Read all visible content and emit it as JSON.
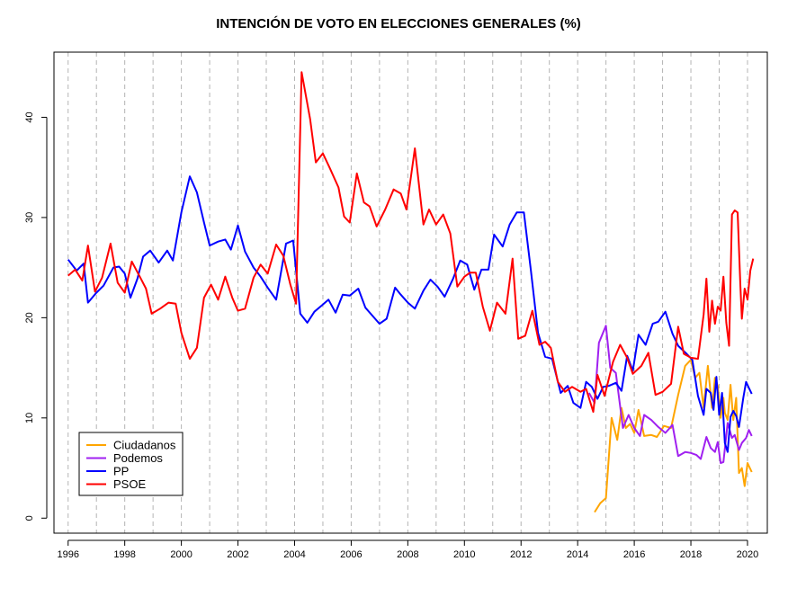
{
  "chart_data": {
    "type": "line",
    "title": "INTENCIÓN DE VOTO EN ELECCIONES GENERALES (%)",
    "xlabel": "",
    "ylabel": "",
    "xlim": [
      1995.5,
      2020.7
    ],
    "ylim": [
      -1.5,
      46.5
    ],
    "x_ticks": [
      1996,
      1998,
      2000,
      2002,
      2004,
      2006,
      2008,
      2010,
      2012,
      2014,
      2016,
      2018,
      2020
    ],
    "y_ticks": [
      0,
      10,
      20,
      30,
      40
    ],
    "vertical_gridlines": [
      1996,
      1997,
      1998,
      1999,
      2000,
      2001,
      2002,
      2003,
      2004,
      2005,
      2006,
      2007,
      2008,
      2009,
      2010,
      2011,
      2012,
      2013,
      2014,
      2015,
      2016,
      2017,
      2018,
      2019,
      2020
    ],
    "grid": "vertical dashed",
    "legend_position": "bottom-left",
    "series": [
      {
        "name": "Ciudadanos",
        "color": "#FFA500",
        "points": [
          [
            2014.6,
            0.6
          ],
          [
            2014.8,
            1.5
          ],
          [
            2015.0,
            2.0
          ],
          [
            2015.2,
            10.0
          ],
          [
            2015.4,
            7.8
          ],
          [
            2015.55,
            11.0
          ],
          [
            2015.7,
            9.0
          ],
          [
            2015.85,
            9.4
          ],
          [
            2016.0,
            8.5
          ],
          [
            2016.15,
            10.8
          ],
          [
            2016.35,
            8.2
          ],
          [
            2016.6,
            8.3
          ],
          [
            2016.8,
            8.1
          ],
          [
            2017.05,
            9.2
          ],
          [
            2017.3,
            9.0
          ],
          [
            2017.55,
            12.3
          ],
          [
            2017.8,
            15.2
          ],
          [
            2018.0,
            15.8
          ],
          [
            2018.15,
            14.0
          ],
          [
            2018.3,
            14.5
          ],
          [
            2018.45,
            11.0
          ],
          [
            2018.6,
            15.2
          ],
          [
            2018.75,
            11.0
          ],
          [
            2018.85,
            14.0
          ],
          [
            2018.95,
            13.2
          ],
          [
            2019.05,
            10.0
          ],
          [
            2019.15,
            12.0
          ],
          [
            2019.2,
            10.5
          ],
          [
            2019.3,
            9.8
          ],
          [
            2019.4,
            13.3
          ],
          [
            2019.5,
            9.8
          ],
          [
            2019.6,
            12.0
          ],
          [
            2019.7,
            4.5
          ],
          [
            2019.8,
            5.0
          ],
          [
            2019.9,
            3.2
          ],
          [
            2020.0,
            5.5
          ],
          [
            2020.15,
            4.6
          ]
        ]
      },
      {
        "name": "Podemos",
        "color": "#A020F0",
        "points": [
          [
            2014.4,
            12.5
          ],
          [
            2014.6,
            11.5
          ],
          [
            2014.75,
            17.5
          ],
          [
            2015.0,
            19.2
          ],
          [
            2015.15,
            15.0
          ],
          [
            2015.35,
            14.5
          ],
          [
            2015.6,
            9.0
          ],
          [
            2015.8,
            10.3
          ],
          [
            2016.0,
            9.0
          ],
          [
            2016.2,
            8.2
          ],
          [
            2016.35,
            10.3
          ],
          [
            2016.6,
            9.8
          ],
          [
            2016.85,
            9.1
          ],
          [
            2017.1,
            8.5
          ],
          [
            2017.35,
            9.3
          ],
          [
            2017.55,
            6.2
          ],
          [
            2017.8,
            6.6
          ],
          [
            2018.0,
            6.5
          ],
          [
            2018.2,
            6.3
          ],
          [
            2018.35,
            5.9
          ],
          [
            2018.55,
            8.1
          ],
          [
            2018.7,
            7.0
          ],
          [
            2018.85,
            6.6
          ],
          [
            2018.95,
            7.6
          ],
          [
            2019.05,
            5.5
          ],
          [
            2019.15,
            5.6
          ],
          [
            2019.3,
            9.5
          ],
          [
            2019.45,
            8.0
          ],
          [
            2019.55,
            8.3
          ],
          [
            2019.7,
            6.8
          ],
          [
            2019.8,
            7.5
          ],
          [
            2019.95,
            8.0
          ],
          [
            2020.05,
            8.8
          ],
          [
            2020.15,
            8.2
          ]
        ]
      },
      {
        "name": "PP",
        "color": "#0000FF",
        "points": [
          [
            1996.0,
            25.8
          ],
          [
            1996.3,
            24.7
          ],
          [
            1996.55,
            25.4
          ],
          [
            1996.7,
            21.5
          ],
          [
            1997.0,
            22.5
          ],
          [
            1997.25,
            23.2
          ],
          [
            1997.6,
            25.0
          ],
          [
            1997.8,
            25.1
          ],
          [
            1998.0,
            24.4
          ],
          [
            1998.2,
            22.0
          ],
          [
            1998.45,
            23.9
          ],
          [
            1998.65,
            26.1
          ],
          [
            1998.9,
            26.7
          ],
          [
            1999.2,
            25.5
          ],
          [
            1999.5,
            26.7
          ],
          [
            1999.7,
            25.7
          ],
          [
            2000.0,
            30.5
          ],
          [
            2000.3,
            34.1
          ],
          [
            2000.55,
            32.5
          ],
          [
            2000.8,
            29.5
          ],
          [
            2001.0,
            27.2
          ],
          [
            2001.3,
            27.6
          ],
          [
            2001.55,
            27.8
          ],
          [
            2001.75,
            26.8
          ],
          [
            2002.0,
            29.2
          ],
          [
            2002.25,
            26.6
          ],
          [
            2002.55,
            25.0
          ],
          [
            2002.8,
            24.1
          ],
          [
            2003.05,
            23.0
          ],
          [
            2003.35,
            21.8
          ],
          [
            2003.7,
            27.4
          ],
          [
            2003.95,
            27.7
          ],
          [
            2004.2,
            20.4
          ],
          [
            2004.45,
            19.5
          ],
          [
            2004.7,
            20.6
          ],
          [
            2004.95,
            21.2
          ],
          [
            2005.2,
            21.8
          ],
          [
            2005.45,
            20.5
          ],
          [
            2005.7,
            22.3
          ],
          [
            2005.95,
            22.2
          ],
          [
            2006.25,
            22.9
          ],
          [
            2006.5,
            21.0
          ],
          [
            2006.75,
            20.2
          ],
          [
            2007.0,
            19.4
          ],
          [
            2007.25,
            19.9
          ],
          [
            2007.55,
            23.0
          ],
          [
            2007.75,
            22.3
          ],
          [
            2008.0,
            21.5
          ],
          [
            2008.25,
            20.9
          ],
          [
            2008.55,
            22.7
          ],
          [
            2008.8,
            23.8
          ],
          [
            2009.05,
            23.1
          ],
          [
            2009.3,
            22.1
          ],
          [
            2009.6,
            23.9
          ],
          [
            2009.85,
            25.7
          ],
          [
            2010.1,
            25.3
          ],
          [
            2010.35,
            22.8
          ],
          [
            2010.6,
            24.8
          ],
          [
            2010.85,
            24.8
          ],
          [
            2011.05,
            28.3
          ],
          [
            2011.35,
            27.1
          ],
          [
            2011.6,
            29.3
          ],
          [
            2011.85,
            30.5
          ],
          [
            2012.1,
            30.5
          ],
          [
            2012.35,
            24.7
          ],
          [
            2012.6,
            18.5
          ],
          [
            2012.85,
            16.1
          ],
          [
            2013.1,
            15.9
          ],
          [
            2013.4,
            12.5
          ],
          [
            2013.65,
            13.2
          ],
          [
            2013.85,
            11.5
          ],
          [
            2014.1,
            11.0
          ],
          [
            2014.3,
            13.6
          ],
          [
            2014.5,
            13.1
          ],
          [
            2014.7,
            11.9
          ],
          [
            2014.9,
            13.1
          ],
          [
            2015.1,
            13.2
          ],
          [
            2015.35,
            13.5
          ],
          [
            2015.55,
            12.7
          ],
          [
            2015.75,
            16.2
          ],
          [
            2015.95,
            14.7
          ],
          [
            2016.15,
            18.3
          ],
          [
            2016.4,
            17.3
          ],
          [
            2016.65,
            19.4
          ],
          [
            2016.85,
            19.6
          ],
          [
            2017.1,
            20.6
          ],
          [
            2017.35,
            18.4
          ],
          [
            2017.55,
            17.2
          ],
          [
            2017.85,
            16.4
          ],
          [
            2018.05,
            15.8
          ],
          [
            2018.25,
            12.2
          ],
          [
            2018.45,
            10.3
          ],
          [
            2018.55,
            12.9
          ],
          [
            2018.7,
            12.5
          ],
          [
            2018.8,
            10.8
          ],
          [
            2018.9,
            14.1
          ],
          [
            2019.0,
            10.3
          ],
          [
            2019.1,
            12.5
          ],
          [
            2019.2,
            7.5
          ],
          [
            2019.3,
            6.6
          ],
          [
            2019.4,
            10.1
          ],
          [
            2019.5,
            10.7
          ],
          [
            2019.6,
            10.2
          ],
          [
            2019.7,
            9.1
          ],
          [
            2019.85,
            12.0
          ],
          [
            2019.95,
            13.6
          ],
          [
            2020.05,
            13.0
          ],
          [
            2020.15,
            12.4
          ]
        ]
      },
      {
        "name": "PSOE",
        "color": "#FF0000",
        "points": [
          [
            1996.0,
            24.2
          ],
          [
            1996.25,
            24.8
          ],
          [
            1996.5,
            23.7
          ],
          [
            1996.7,
            27.2
          ],
          [
            1996.95,
            22.6
          ],
          [
            1997.2,
            24.0
          ],
          [
            1997.5,
            27.4
          ],
          [
            1997.75,
            23.5
          ],
          [
            1998.0,
            22.5
          ],
          [
            1998.25,
            25.6
          ],
          [
            1998.55,
            24.0
          ],
          [
            1998.75,
            22.9
          ],
          [
            1998.95,
            20.4
          ],
          [
            1999.25,
            20.9
          ],
          [
            1999.55,
            21.5
          ],
          [
            1999.8,
            21.4
          ],
          [
            2000.0,
            18.5
          ],
          [
            2000.3,
            15.9
          ],
          [
            2000.55,
            17.0
          ],
          [
            2000.8,
            22.0
          ],
          [
            2001.05,
            23.3
          ],
          [
            2001.3,
            21.8
          ],
          [
            2001.55,
            24.1
          ],
          [
            2001.8,
            22.0
          ],
          [
            2002.0,
            20.7
          ],
          [
            2002.25,
            20.9
          ],
          [
            2002.55,
            24.0
          ],
          [
            2002.8,
            25.3
          ],
          [
            2003.05,
            24.4
          ],
          [
            2003.35,
            27.3
          ],
          [
            2003.6,
            26.2
          ],
          [
            2003.85,
            23.3
          ],
          [
            2004.05,
            21.4
          ],
          [
            2004.25,
            44.5
          ],
          [
            2004.55,
            39.8
          ],
          [
            2004.75,
            35.5
          ],
          [
            2005.0,
            36.4
          ],
          [
            2005.25,
            34.9
          ],
          [
            2005.55,
            33.0
          ],
          [
            2005.75,
            30.1
          ],
          [
            2005.95,
            29.5
          ],
          [
            2006.2,
            34.4
          ],
          [
            2006.45,
            31.5
          ],
          [
            2006.65,
            31.1
          ],
          [
            2006.9,
            29.1
          ],
          [
            2007.2,
            30.8
          ],
          [
            2007.5,
            32.8
          ],
          [
            2007.75,
            32.4
          ],
          [
            2007.95,
            30.8
          ],
          [
            2008.25,
            36.9
          ],
          [
            2008.55,
            29.3
          ],
          [
            2008.75,
            30.8
          ],
          [
            2009.0,
            29.3
          ],
          [
            2009.25,
            30.3
          ],
          [
            2009.5,
            28.4
          ],
          [
            2009.75,
            23.1
          ],
          [
            2010.0,
            24.1
          ],
          [
            2010.2,
            24.5
          ],
          [
            2010.4,
            24.5
          ],
          [
            2010.65,
            21.1
          ],
          [
            2010.9,
            18.7
          ],
          [
            2011.15,
            21.5
          ],
          [
            2011.45,
            20.4
          ],
          [
            2011.7,
            25.9
          ],
          [
            2011.9,
            17.9
          ],
          [
            2012.15,
            18.2
          ],
          [
            2012.4,
            20.7
          ],
          [
            2012.65,
            17.3
          ],
          [
            2012.85,
            17.6
          ],
          [
            2013.05,
            17.0
          ],
          [
            2013.3,
            13.6
          ],
          [
            2013.55,
            12.6
          ],
          [
            2013.8,
            13.1
          ],
          [
            2014.1,
            12.6
          ],
          [
            2014.3,
            12.9
          ],
          [
            2014.55,
            10.6
          ],
          [
            2014.7,
            14.3
          ],
          [
            2014.95,
            12.2
          ],
          [
            2015.25,
            15.6
          ],
          [
            2015.5,
            17.3
          ],
          [
            2015.75,
            16.0
          ],
          [
            2015.95,
            14.4
          ],
          [
            2016.25,
            15.2
          ],
          [
            2016.5,
            16.5
          ],
          [
            2016.75,
            12.3
          ],
          [
            2017.0,
            12.6
          ],
          [
            2017.3,
            13.4
          ],
          [
            2017.55,
            19.1
          ],
          [
            2017.75,
            16.4
          ],
          [
            2018.0,
            16.0
          ],
          [
            2018.25,
            15.9
          ],
          [
            2018.45,
            20.3
          ],
          [
            2018.55,
            23.9
          ],
          [
            2018.65,
            18.6
          ],
          [
            2018.75,
            21.7
          ],
          [
            2018.85,
            19.4
          ],
          [
            2018.95,
            21.1
          ],
          [
            2019.05,
            20.7
          ],
          [
            2019.15,
            24.1
          ],
          [
            2019.25,
            19.5
          ],
          [
            2019.35,
            17.2
          ],
          [
            2019.45,
            30.3
          ],
          [
            2019.55,
            30.7
          ],
          [
            2019.65,
            30.5
          ],
          [
            2019.75,
            23.1
          ],
          [
            2019.8,
            19.9
          ],
          [
            2019.9,
            22.9
          ],
          [
            2020.0,
            21.8
          ],
          [
            2020.1,
            24.7
          ],
          [
            2020.2,
            25.9
          ]
        ]
      }
    ]
  }
}
